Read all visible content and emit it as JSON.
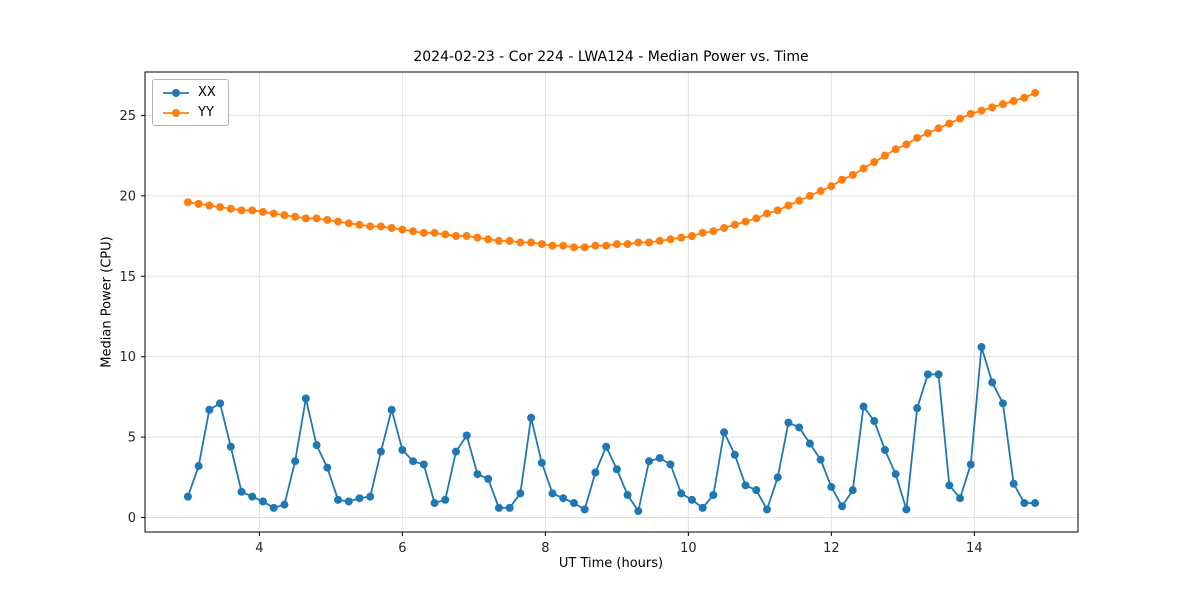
{
  "chart_data": {
    "type": "line",
    "title": "2024-02-23 - Cor 224 - LWA124 - Median Power vs. Time",
    "xlabel": "UT Time (hours)",
    "ylabel": "Median Power (CPU)",
    "xlim": [
      2.4,
      15.45
    ],
    "ylim": [
      -0.9,
      27.7
    ],
    "xticks": [
      4,
      6,
      8,
      10,
      12,
      14
    ],
    "yticks": [
      0,
      5,
      10,
      15,
      20,
      25
    ],
    "grid": true,
    "legend_position": "upper-left",
    "colors": {
      "grid": "#e0e0e0",
      "axis": "#000000",
      "text": "#262626"
    },
    "x": [
      3.0,
      3.15,
      3.3,
      3.45,
      3.6,
      3.75,
      3.9,
      4.05,
      4.2,
      4.35,
      4.5,
      4.65,
      4.8,
      4.95,
      5.1,
      5.25,
      5.4,
      5.55,
      5.7,
      5.85,
      6.0,
      6.15,
      6.3,
      6.45,
      6.6,
      6.75,
      6.9,
      7.05,
      7.2,
      7.35,
      7.5,
      7.65,
      7.8,
      7.95,
      8.1,
      8.25,
      8.4,
      8.55,
      8.7,
      8.85,
      9.0,
      9.15,
      9.3,
      9.45,
      9.6,
      9.75,
      9.9,
      10.05,
      10.2,
      10.35,
      10.5,
      10.65,
      10.8,
      10.95,
      11.1,
      11.25,
      11.4,
      11.55,
      11.7,
      11.85,
      12.0,
      12.15,
      12.3,
      12.45,
      12.6,
      12.75,
      12.9,
      13.05,
      13.2,
      13.35,
      13.5,
      13.65,
      13.8,
      13.95,
      14.1,
      14.25,
      14.4,
      14.55,
      14.7,
      14.85
    ],
    "series": [
      {
        "name": "XX",
        "color": "#1f77b4",
        "values": [
          1.3,
          3.2,
          6.7,
          7.1,
          4.4,
          1.6,
          1.3,
          1.0,
          0.6,
          0.8,
          3.5,
          7.4,
          4.5,
          3.1,
          1.1,
          1.0,
          1.2,
          1.3,
          4.1,
          6.7,
          4.2,
          3.5,
          3.3,
          0.9,
          1.1,
          4.1,
          5.1,
          2.7,
          2.4,
          0.6,
          0.6,
          1.5,
          6.2,
          3.4,
          1.5,
          1.2,
          0.9,
          0.5,
          2.8,
          4.4,
          3.0,
          1.4,
          0.4,
          3.5,
          3.7,
          3.3,
          1.5,
          1.1,
          0.6,
          1.4,
          5.3,
          3.9,
          2.0,
          1.7,
          0.5,
          2.5,
          5.9,
          5.6,
          4.6,
          3.6,
          1.9,
          0.7,
          1.7,
          6.9,
          6.0,
          4.2,
          2.7,
          0.5,
          6.8,
          8.9,
          8.9,
          2.0,
          1.2,
          3.3,
          10.6,
          8.4,
          7.1,
          2.1,
          0.9,
          0.9
        ]
      },
      {
        "name": "YY",
        "color": "#ff7f0e",
        "values": [
          19.6,
          19.5,
          19.4,
          19.3,
          19.2,
          19.1,
          19.1,
          19.0,
          18.9,
          18.8,
          18.7,
          18.6,
          18.6,
          18.5,
          18.4,
          18.3,
          18.2,
          18.1,
          18.1,
          18.0,
          17.9,
          17.8,
          17.7,
          17.7,
          17.6,
          17.5,
          17.5,
          17.4,
          17.3,
          17.2,
          17.2,
          17.1,
          17.1,
          17.0,
          16.9,
          16.9,
          16.8,
          16.8,
          16.9,
          16.9,
          17.0,
          17.0,
          17.1,
          17.1,
          17.2,
          17.3,
          17.4,
          17.5,
          17.7,
          17.8,
          18.0,
          18.2,
          18.4,
          18.6,
          18.9,
          19.1,
          19.4,
          19.7,
          20.0,
          20.3,
          20.6,
          21.0,
          21.3,
          21.7,
          22.1,
          22.5,
          22.9,
          23.2,
          23.6,
          23.9,
          24.2,
          24.5,
          24.8,
          25.1,
          25.3,
          25.5,
          25.7,
          25.9,
          26.1,
          26.4
        ]
      }
    ]
  }
}
